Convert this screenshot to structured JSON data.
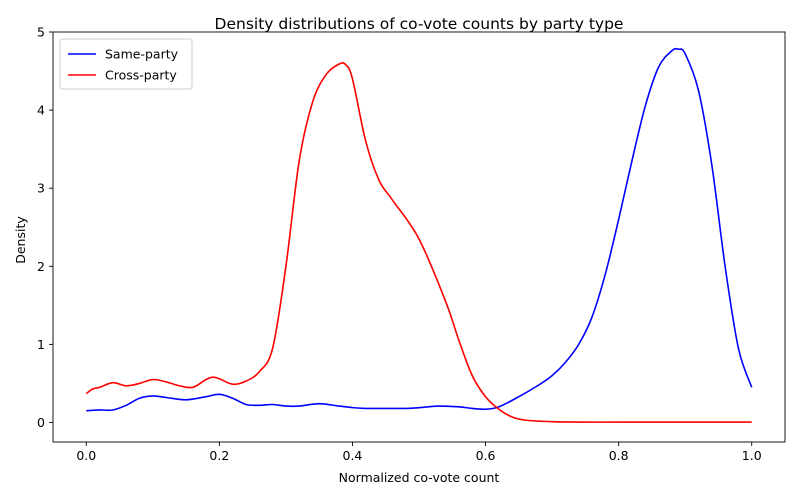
{
  "chart_data": {
    "type": "line",
    "title": "Density distributions of co-vote counts by party type",
    "xlabel": "Normalized co-vote count",
    "ylabel": "Density",
    "xlim": [
      -0.05,
      1.05
    ],
    "ylim": [
      -0.25,
      5.0
    ],
    "xticks": [
      0.0,
      0.2,
      0.4,
      0.6,
      0.8,
      1.0
    ],
    "xtick_labels": [
      "0.0",
      "0.2",
      "0.4",
      "0.6",
      "0.8",
      "1.0"
    ],
    "yticks": [
      0,
      1,
      2,
      3,
      4,
      5
    ],
    "ytick_labels": [
      "0",
      "1",
      "2",
      "3",
      "4",
      "5"
    ],
    "grid": false,
    "legend_position": "top-left",
    "series": [
      {
        "name": "Same-party",
        "color": "#0000ff",
        "x": [
          0.0,
          0.02,
          0.04,
          0.06,
          0.08,
          0.1,
          0.12,
          0.15,
          0.18,
          0.2,
          0.22,
          0.24,
          0.26,
          0.28,
          0.3,
          0.32,
          0.35,
          0.38,
          0.4,
          0.42,
          0.45,
          0.48,
          0.5,
          0.53,
          0.56,
          0.58,
          0.6,
          0.62,
          0.65,
          0.68,
          0.7,
          0.72,
          0.74,
          0.76,
          0.78,
          0.8,
          0.82,
          0.84,
          0.86,
          0.88,
          0.89,
          0.9,
          0.92,
          0.94,
          0.96,
          0.98,
          1.0
        ],
        "values": [
          0.15,
          0.16,
          0.16,
          0.22,
          0.31,
          0.34,
          0.32,
          0.29,
          0.33,
          0.36,
          0.31,
          0.23,
          0.22,
          0.23,
          0.21,
          0.21,
          0.24,
          0.21,
          0.19,
          0.18,
          0.18,
          0.18,
          0.19,
          0.21,
          0.2,
          0.18,
          0.17,
          0.2,
          0.33,
          0.48,
          0.6,
          0.77,
          1.0,
          1.35,
          1.9,
          2.6,
          3.35,
          4.05,
          4.55,
          4.76,
          4.78,
          4.72,
          4.25,
          3.3,
          2.0,
          0.95,
          0.45
        ]
      },
      {
        "name": "Cross-party",
        "color": "#ff0000",
        "x": [
          0.0,
          0.01,
          0.02,
          0.04,
          0.06,
          0.08,
          0.1,
          0.12,
          0.14,
          0.16,
          0.18,
          0.19,
          0.2,
          0.22,
          0.24,
          0.26,
          0.28,
          0.3,
          0.32,
          0.34,
          0.36,
          0.38,
          0.39,
          0.4,
          0.42,
          0.44,
          0.46,
          0.5,
          0.54,
          0.56,
          0.58,
          0.6,
          0.62,
          0.64,
          0.66,
          0.7,
          0.75,
          0.8,
          0.9,
          1.0
        ],
        "values": [
          0.37,
          0.43,
          0.45,
          0.51,
          0.47,
          0.5,
          0.55,
          0.52,
          0.47,
          0.45,
          0.55,
          0.58,
          0.56,
          0.49,
          0.53,
          0.65,
          0.95,
          2.0,
          3.35,
          4.1,
          4.45,
          4.59,
          4.58,
          4.4,
          3.6,
          3.1,
          2.85,
          2.35,
          1.55,
          1.05,
          0.6,
          0.33,
          0.17,
          0.07,
          0.03,
          0.01,
          0.005,
          0.005,
          0.005,
          0.005
        ]
      }
    ]
  }
}
